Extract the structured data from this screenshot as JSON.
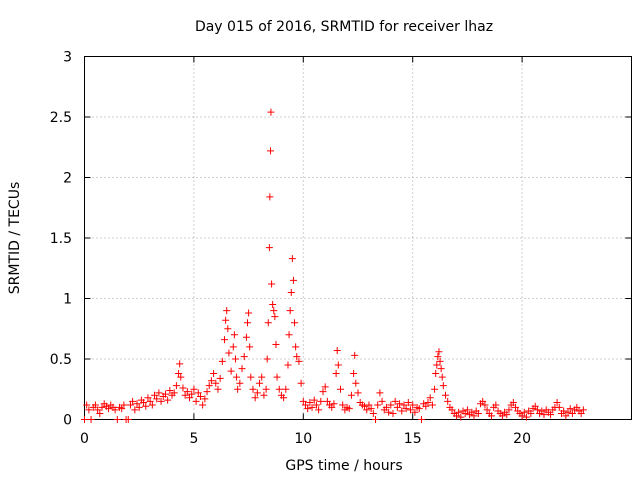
{
  "chart_data": {
    "type": "scatter",
    "title": "Day 015 of 2016, SRMTID for receiver lhaz",
    "xlabel": "GPS time / hours",
    "ylabel": "SRMTID / TECUs",
    "xlim": [
      0,
      25
    ],
    "ylim": [
      0,
      3
    ],
    "x_ticks": [
      0,
      5,
      10,
      15,
      20
    ],
    "y_ticks": [
      0,
      0.5,
      1,
      1.5,
      2,
      2.5,
      3
    ],
    "grid": true,
    "marker": "plus",
    "color": "#ff0000",
    "series": [
      {
        "name": "lhaz",
        "points": [
          [
            0.0,
            0.0
          ],
          [
            0.1,
            0.12
          ],
          [
            0.2,
            0.08
          ],
          [
            0.3,
            0.0
          ],
          [
            0.4,
            0.1
          ],
          [
            0.5,
            0.12
          ],
          [
            0.6,
            0.08
          ],
          [
            0.7,
            0.05
          ],
          [
            0.8,
            0.1
          ],
          [
            0.9,
            0.13
          ],
          [
            1.0,
            0.11
          ],
          [
            1.1,
            0.09
          ],
          [
            1.2,
            0.12
          ],
          [
            1.3,
            0.1
          ],
          [
            1.4,
            0.08
          ],
          [
            1.5,
            0.0
          ],
          [
            1.6,
            0.1
          ],
          [
            1.7,
            0.09
          ],
          [
            1.8,
            0.12
          ],
          [
            1.9,
            0.0
          ],
          [
            2.0,
            0.0
          ],
          [
            2.1,
            0.12
          ],
          [
            2.2,
            0.15
          ],
          [
            2.3,
            0.08
          ],
          [
            2.4,
            0.13
          ],
          [
            2.5,
            0.1
          ],
          [
            2.6,
            0.16
          ],
          [
            2.7,
            0.14
          ],
          [
            2.8,
            0.11
          ],
          [
            2.9,
            0.18
          ],
          [
            3.0,
            0.15
          ],
          [
            3.1,
            0.12
          ],
          [
            3.2,
            0.2
          ],
          [
            3.3,
            0.17
          ],
          [
            3.4,
            0.22
          ],
          [
            3.5,
            0.15
          ],
          [
            3.6,
            0.19
          ],
          [
            3.7,
            0.21
          ],
          [
            3.8,
            0.16
          ],
          [
            3.9,
            0.24
          ],
          [
            4.0,
            0.2
          ],
          [
            4.1,
            0.22
          ],
          [
            4.2,
            0.28
          ],
          [
            4.3,
            0.38
          ],
          [
            4.35,
            0.46
          ],
          [
            4.4,
            0.35
          ],
          [
            4.5,
            0.26
          ],
          [
            4.6,
            0.2
          ],
          [
            4.7,
            0.23
          ],
          [
            4.8,
            0.18
          ],
          [
            4.9,
            0.21
          ],
          [
            5.0,
            0.25
          ],
          [
            5.1,
            0.15
          ],
          [
            5.2,
            0.22
          ],
          [
            5.3,
            0.19
          ],
          [
            5.4,
            0.12
          ],
          [
            5.5,
            0.17
          ],
          [
            5.6,
            0.23
          ],
          [
            5.7,
            0.28
          ],
          [
            5.8,
            0.32
          ],
          [
            5.9,
            0.38
          ],
          [
            6.0,
            0.3
          ],
          [
            6.1,
            0.25
          ],
          [
            6.2,
            0.34
          ],
          [
            6.3,
            0.48
          ],
          [
            6.4,
            0.66
          ],
          [
            6.45,
            0.82
          ],
          [
            6.5,
            0.9
          ],
          [
            6.55,
            0.75
          ],
          [
            6.6,
            0.55
          ],
          [
            6.7,
            0.4
          ],
          [
            6.8,
            0.6
          ],
          [
            6.85,
            0.7
          ],
          [
            6.9,
            0.5
          ],
          [
            6.95,
            0.35
          ],
          [
            7.0,
            0.25
          ],
          [
            7.1,
            0.3
          ],
          [
            7.2,
            0.42
          ],
          [
            7.3,
            0.52
          ],
          [
            7.4,
            0.68
          ],
          [
            7.45,
            0.8
          ],
          [
            7.5,
            0.88
          ],
          [
            7.55,
            0.6
          ],
          [
            7.6,
            0.35
          ],
          [
            7.7,
            0.25
          ],
          [
            7.8,
            0.18
          ],
          [
            7.9,
            0.22
          ],
          [
            8.0,
            0.3
          ],
          [
            8.1,
            0.35
          ],
          [
            8.2,
            0.2
          ],
          [
            8.3,
            0.25
          ],
          [
            8.35,
            0.5
          ],
          [
            8.4,
            0.8
          ],
          [
            8.45,
            1.42
          ],
          [
            8.47,
            1.84
          ],
          [
            8.5,
            2.22
          ],
          [
            8.52,
            2.54
          ],
          [
            8.55,
            1.12
          ],
          [
            8.6,
            0.95
          ],
          [
            8.65,
            0.9
          ],
          [
            8.7,
            0.85
          ],
          [
            8.75,
            0.62
          ],
          [
            8.8,
            0.35
          ],
          [
            8.9,
            0.25
          ],
          [
            9.0,
            0.2
          ],
          [
            9.1,
            0.18
          ],
          [
            9.2,
            0.25
          ],
          [
            9.3,
            0.45
          ],
          [
            9.35,
            0.7
          ],
          [
            9.4,
            0.9
          ],
          [
            9.45,
            1.05
          ],
          [
            9.5,
            1.33
          ],
          [
            9.55,
            1.15
          ],
          [
            9.6,
            0.8
          ],
          [
            9.65,
            0.6
          ],
          [
            9.7,
            0.52
          ],
          [
            9.8,
            0.48
          ],
          [
            9.9,
            0.3
          ],
          [
            10.0,
            0.15
          ],
          [
            10.1,
            0.12
          ],
          [
            10.2,
            0.09
          ],
          [
            10.3,
            0.14
          ],
          [
            10.4,
            0.1
          ],
          [
            10.5,
            0.16
          ],
          [
            10.6,
            0.12
          ],
          [
            10.7,
            0.08
          ],
          [
            10.8,
            0.15
          ],
          [
            10.9,
            0.23
          ],
          [
            11.0,
            0.27
          ],
          [
            11.1,
            0.15
          ],
          [
            11.2,
            0.12
          ],
          [
            11.3,
            0.1
          ],
          [
            11.4,
            0.13
          ],
          [
            11.5,
            0.38
          ],
          [
            11.55,
            0.57
          ],
          [
            11.6,
            0.45
          ],
          [
            11.7,
            0.25
          ],
          [
            11.8,
            0.12
          ],
          [
            11.9,
            0.08
          ],
          [
            12.0,
            0.1
          ],
          [
            12.1,
            0.09
          ],
          [
            12.2,
            0.2
          ],
          [
            12.3,
            0.38
          ],
          [
            12.35,
            0.53
          ],
          [
            12.4,
            0.3
          ],
          [
            12.5,
            0.22
          ],
          [
            12.6,
            0.14
          ],
          [
            12.7,
            0.12
          ],
          [
            12.8,
            0.11
          ],
          [
            12.9,
            0.08
          ],
          [
            13.0,
            0.12
          ],
          [
            13.1,
            0.09
          ],
          [
            13.2,
            0.05
          ],
          [
            13.3,
            0.0
          ],
          [
            13.4,
            0.12
          ],
          [
            13.5,
            0.22
          ],
          [
            13.6,
            0.15
          ],
          [
            13.7,
            0.08
          ],
          [
            13.8,
            0.1
          ],
          [
            13.9,
            0.06
          ],
          [
            14.0,
            0.12
          ],
          [
            14.1,
            0.05
          ],
          [
            14.2,
            0.15
          ],
          [
            14.3,
            0.1
          ],
          [
            14.4,
            0.13
          ],
          [
            14.5,
            0.07
          ],
          [
            14.6,
            0.12
          ],
          [
            14.7,
            0.09
          ],
          [
            14.8,
            0.14
          ],
          [
            14.9,
            0.08
          ],
          [
            15.0,
            0.12
          ],
          [
            15.1,
            0.06
          ],
          [
            15.2,
            0.1
          ],
          [
            15.3,
            0.09
          ],
          [
            15.4,
            0.0
          ],
          [
            15.5,
            0.13
          ],
          [
            15.6,
            0.11
          ],
          [
            15.7,
            0.14
          ],
          [
            15.8,
            0.18
          ],
          [
            15.9,
            0.12
          ],
          [
            16.0,
            0.25
          ],
          [
            16.05,
            0.38
          ],
          [
            16.1,
            0.45
          ],
          [
            16.15,
            0.52
          ],
          [
            16.2,
            0.56
          ],
          [
            16.25,
            0.48
          ],
          [
            16.3,
            0.42
          ],
          [
            16.35,
            0.35
          ],
          [
            16.4,
            0.28
          ],
          [
            16.5,
            0.2
          ],
          [
            16.6,
            0.15
          ],
          [
            16.7,
            0.1
          ],
          [
            16.8,
            0.08
          ],
          [
            16.9,
            0.05
          ],
          [
            17.0,
            0.03
          ],
          [
            17.1,
            0.06
          ],
          [
            17.2,
            0.02
          ],
          [
            17.3,
            0.07
          ],
          [
            17.4,
            0.05
          ],
          [
            17.5,
            0.08
          ],
          [
            17.6,
            0.04
          ],
          [
            17.7,
            0.06
          ],
          [
            17.8,
            0.03
          ],
          [
            17.9,
            0.07
          ],
          [
            18.0,
            0.05
          ],
          [
            18.1,
            0.13
          ],
          [
            18.2,
            0.15
          ],
          [
            18.3,
            0.12
          ],
          [
            18.4,
            0.08
          ],
          [
            18.5,
            0.05
          ],
          [
            18.6,
            0.03
          ],
          [
            18.7,
            0.1
          ],
          [
            18.8,
            0.12
          ],
          [
            18.9,
            0.07
          ],
          [
            19.0,
            0.05
          ],
          [
            19.1,
            0.03
          ],
          [
            19.2,
            0.06
          ],
          [
            19.3,
            0.04
          ],
          [
            19.4,
            0.08
          ],
          [
            19.5,
            0.12
          ],
          [
            19.6,
            0.14
          ],
          [
            19.7,
            0.1
          ],
          [
            19.8,
            0.07
          ],
          [
            19.9,
            0.05
          ],
          [
            20.0,
            0.03
          ],
          [
            20.1,
            0.06
          ],
          [
            20.2,
            0.02
          ],
          [
            20.3,
            0.07
          ],
          [
            20.4,
            0.05
          ],
          [
            20.5,
            0.09
          ],
          [
            20.6,
            0.11
          ],
          [
            20.7,
            0.08
          ],
          [
            20.8,
            0.05
          ],
          [
            20.9,
            0.07
          ],
          [
            21.0,
            0.04
          ],
          [
            21.1,
            0.08
          ],
          [
            21.2,
            0.06
          ],
          [
            21.3,
            0.04
          ],
          [
            21.4,
            0.08
          ],
          [
            21.5,
            0.1
          ],
          [
            21.6,
            0.14
          ],
          [
            21.7,
            0.1
          ],
          [
            21.8,
            0.05
          ],
          [
            21.9,
            0.07
          ],
          [
            22.0,
            0.03
          ],
          [
            22.1,
            0.06
          ],
          [
            22.2,
            0.09
          ],
          [
            22.3,
            0.05
          ],
          [
            22.4,
            0.08
          ],
          [
            22.5,
            0.1
          ],
          [
            22.6,
            0.07
          ],
          [
            22.7,
            0.05
          ],
          [
            22.8,
            0.08
          ]
        ]
      }
    ]
  }
}
